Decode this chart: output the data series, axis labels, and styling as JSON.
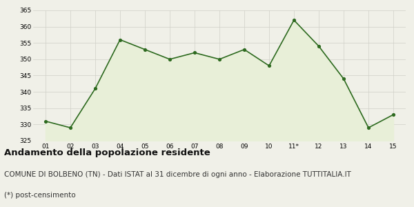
{
  "x_labels": [
    "01",
    "02",
    "03",
    "04",
    "05",
    "06",
    "07",
    "08",
    "09",
    "10",
    "11*",
    "12",
    "13",
    "14",
    "15"
  ],
  "x_values": [
    1,
    2,
    3,
    4,
    5,
    6,
    7,
    8,
    9,
    10,
    11,
    12,
    13,
    14,
    15
  ],
  "y_values": [
    331,
    329,
    341,
    356,
    353,
    350,
    352,
    350,
    353,
    348,
    362,
    354,
    344,
    329,
    333
  ],
  "line_color": "#2d6a1f",
  "fill_color": "#e8efd8",
  "marker_color": "#2d6a1f",
  "background_color": "#f0f0e8",
  "grid_color": "#d0d0c8",
  "ylim": [
    325,
    365
  ],
  "yticks": [
    325,
    330,
    335,
    340,
    345,
    350,
    355,
    360,
    365
  ],
  "title": "Andamento della popolazione residente",
  "subtitle": "COMUNE DI BOLBENO (TN) - Dati ISTAT al 31 dicembre di ogni anno - Elaborazione TUTTITALIA.IT",
  "footnote": "(*) post-censimento",
  "title_fontsize": 9.5,
  "subtitle_fontsize": 7.5,
  "footnote_fontsize": 7.5
}
